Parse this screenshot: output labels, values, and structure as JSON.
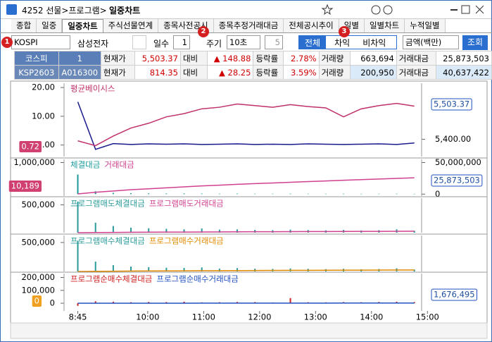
{
  "header": {
    "title_prefix": "4252 선물>프로그램>",
    "title": "일중차트"
  },
  "tabs": [
    "종합",
    "일중",
    "일중차트",
    "주식선물연계",
    "종목사전공시",
    "종목추정거래대금",
    "전체공시추이",
    "일별",
    "일별차트",
    "누적일별"
  ],
  "controls": {
    "market": "KOSPI",
    "stock": "삼성전자",
    "days_label": "일수",
    "days": "1",
    "period_label": "주기",
    "period": "10초",
    "count": "5",
    "modes": [
      "전체",
      "차익",
      "비차익"
    ],
    "unit": "금액(백만)",
    "query": "조회"
  },
  "markers": [
    "1",
    "2",
    "3"
  ],
  "info": {
    "rows": [
      [
        "코스피",
        "1",
        "현재가",
        "5,503.37",
        "대비",
        "▲ 148.88",
        "등락률",
        "2.78%",
        "거래량",
        "663,694",
        "거래대금",
        "25,873,503"
      ],
      [
        "KSP2603",
        "A016300",
        "현재가",
        "814.35",
        "대비",
        "▲ 28.25",
        "등락률",
        "3.59%",
        "거래량",
        "200,950",
        "거래대금",
        "40,637,422"
      ]
    ]
  },
  "chart_data": [
    {
      "type": "combo",
      "x": [
        525,
        544,
        563,
        582,
        601,
        620,
        639,
        658,
        677,
        696,
        715,
        734,
        753,
        772,
        791,
        810,
        829,
        848,
        867,
        886
      ],
      "ylim": [
        -4,
        21.5
      ],
      "yticks": [
        {
          "value": 20,
          "label": "20.00"
        },
        {
          "value": 10,
          "label": "10.00"
        },
        {
          "value": 0,
          "label": "0.00"
        }
      ],
      "y2lim": [
        5346,
        5575
      ],
      "y2ticks": [
        {
          "value": 5400,
          "label": "5,400.00"
        }
      ],
      "left_badge": "0.72",
      "right_badge": "5,503.37",
      "series": [
        {
          "type": "line",
          "color": "#1a1a8c",
          "values": [
            15,
            -1.5,
            0.5,
            0.2,
            0.4,
            0.3,
            0.4,
            0.2,
            0.3,
            0.4,
            0.2,
            0.3,
            0.2,
            0.4,
            0.3,
            0.2,
            0.3,
            0.4,
            0.2,
            0.72
          ]
        },
        {
          "name": "평균베이시스",
          "type": "line",
          "axis": "y2",
          "color": "#c0306a",
          "values": [
            5395,
            5380,
            5410,
            5435,
            5450,
            5470,
            5480,
            5495,
            5500,
            5510,
            5505,
            5500,
            5508,
            5502,
            5498,
            5470,
            5495,
            5505,
            5512,
            5503.37
          ]
        }
      ]
    },
    {
      "type": "combo",
      "x": [
        525,
        544,
        563,
        582,
        601,
        620,
        639,
        658,
        677,
        696,
        715,
        734,
        753,
        772,
        791,
        810,
        829,
        848,
        867,
        886
      ],
      "ylim": [
        -60000,
        1100000
      ],
      "yticks": [
        {
          "value": 1000000,
          "label": "1,000,000"
        }
      ],
      "y2lim": [
        -3000000,
        55000000
      ],
      "y2ticks": [
        {
          "value": 50000000,
          "label": "50,000,000"
        },
        0
      ],
      "left_badge": "10,189",
      "right_badge": "25,873,503",
      "series": [
        {
          "name": "체결대금",
          "type": "bar",
          "color": "#1a9a9a",
          "values": [
            620000,
            90000,
            40000,
            30000,
            25000,
            20000,
            22000,
            18000,
            15000,
            17000,
            14000,
            12000,
            15000,
            13000,
            12000,
            14000,
            11000,
            12000,
            13000,
            10189
          ]
        },
        {
          "name": "거래대금",
          "type": "line",
          "axis": "y2",
          "color": "#d04090",
          "values": [
            300000,
            3000000,
            5000000,
            7000000,
            8500000,
            10000000,
            11500000,
            13000000,
            14200000,
            15500000,
            16600000,
            17700000,
            18800000,
            19900000,
            20900000,
            21900000,
            22900000,
            23900000,
            24900000,
            25873503
          ]
        }
      ]
    },
    {
      "type": "combo",
      "x": [
        525,
        544,
        563,
        582,
        601,
        620,
        639,
        658,
        677,
        696,
        715,
        734,
        753,
        772,
        791,
        810,
        829,
        848,
        867,
        886
      ],
      "ylim": [
        0,
        620000
      ],
      "yticks": [
        {
          "value": 500000,
          "label": "500,000"
        }
      ],
      "y2lim": [
        0,
        300000000
      ],
      "series": [
        {
          "name": "프로그램매도체결대금",
          "type": "bar",
          "color": "#2a9a9a",
          "values": [
            560000,
            180000,
            120000,
            90000,
            80000,
            70000,
            60000,
            75000,
            55000,
            60000,
            50000,
            45000,
            55000,
            48000,
            42000,
            50000,
            40000,
            45000,
            60000,
            35000
          ]
        },
        {
          "name": "프로그램매도거래대금",
          "type": "line",
          "axis": "y2",
          "color": "#d04090",
          "values": [
            100000,
            1500000,
            2600000,
            3500000,
            4300000,
            5000000,
            5700000,
            6400000,
            7000000,
            7600000,
            8200000,
            8700000,
            9300000,
            9800000,
            10300000,
            10800000,
            11300000,
            11800000,
            12300000,
            12800000
          ]
        }
      ]
    },
    {
      "type": "combo",
      "x": [
        525,
        544,
        563,
        582,
        601,
        620,
        639,
        658,
        677,
        696,
        715,
        734,
        753,
        772,
        791,
        810,
        829,
        848,
        867,
        886
      ],
      "ylim": [
        0,
        620000
      ],
      "yticks": [
        {
          "value": 500000,
          "label": "500,000"
        }
      ],
      "y2lim": [
        0,
        300000000
      ],
      "series": [
        {
          "name": "프로그램매수체결대금",
          "type": "bar",
          "color": "#2a9a9a",
          "values": [
            530000,
            170000,
            110000,
            85000,
            75000,
            65000,
            62000,
            70000,
            50000,
            58000,
            48000,
            44000,
            52000,
            46000,
            40000,
            47000,
            38000,
            43000,
            55000,
            33000
          ]
        },
        {
          "name": "프로그램매수거래대금",
          "type": "line",
          "axis": "y2",
          "color": "#e08a00",
          "values": [
            90000,
            1400000,
            2500000,
            3400000,
            4200000,
            4900000,
            5600000,
            6300000,
            6900000,
            7500000,
            8100000,
            8600000,
            9200000,
            9700000,
            10200000,
            10700000,
            11200000,
            11700000,
            12200000,
            12700000
          ]
        }
      ]
    },
    {
      "type": "combo",
      "x": [
        525,
        544,
        563,
        582,
        601,
        620,
        639,
        658,
        677,
        696,
        715,
        734,
        753,
        772,
        791,
        810,
        829,
        848,
        867,
        886
      ],
      "xlim": [
        511,
        893
      ],
      "xticks": [
        {
          "value": 525,
          "label": "8:45"
        },
        {
          "value": 600,
          "label": "10:00"
        },
        {
          "value": 660,
          "label": "11:00"
        },
        {
          "value": 720,
          "label": "12:00"
        },
        {
          "value": 780,
          "label": "13:00"
        },
        {
          "value": 840,
          "label": "14:00"
        },
        {
          "value": 900,
          "label": "15:00"
        }
      ],
      "ylim": [
        -60000,
        230000
      ],
      "yticks": [
        {
          "value": 200000,
          "label": "200,000"
        },
        {
          "value": 100000,
          "label": "100,000"
        },
        0
      ],
      "y2lim": [
        -60000000,
        230000000
      ],
      "left_badge": "0",
      "right_badge": "1,676,495",
      "series": [
        {
          "name": "프로그램순매수체결대금",
          "type": "bar",
          "color": "#d02020",
          "values": [
            -20000,
            15000,
            12000,
            8000,
            10000,
            9000,
            12000,
            7000,
            8000,
            10000,
            9000,
            6000,
            40000,
            8000,
            7000,
            9000,
            8000,
            10000,
            12000,
            9000
          ]
        },
        {
          "name": "프로그램순매수거래대금",
          "type": "line",
          "axis": "y2",
          "color": "#2050c0",
          "values": [
            -50000,
            100000,
            200000,
            300000,
            380000,
            450000,
            530000,
            600000,
            680000,
            760000,
            840000,
            920000,
            1050000,
            1130000,
            1200000,
            1290000,
            1380000,
            1470000,
            1570000,
            1676495
          ]
        }
      ]
    }
  ]
}
